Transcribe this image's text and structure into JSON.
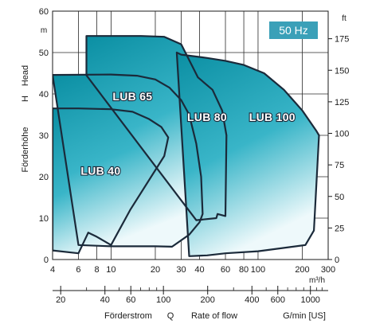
{
  "chart_data": {
    "type": "area",
    "title": "",
    "badge": {
      "text": "50 Hz",
      "color": "#3aa0b8"
    },
    "y_left": {
      "range": [
        0,
        60
      ],
      "ticks": [
        0,
        10,
        20,
        30,
        40,
        50,
        60
      ],
      "tick_labels": [
        "0",
        "10",
        "20",
        "30",
        "40",
        "50",
        "60"
      ],
      "unit": "m",
      "titles": [
        "Head",
        "H",
        "Förderhöhe"
      ]
    },
    "y_right": {
      "range_ft": [
        0,
        196.85
      ],
      "ticks": [
        0,
        25,
        50,
        75,
        100,
        125,
        150,
        175
      ],
      "tick_labels": [
        "0",
        "25",
        "50",
        "75",
        "100",
        "125",
        "150",
        "175"
      ],
      "unit": "ft"
    },
    "x_m3h": {
      "scale": "log",
      "range": [
        4,
        300
      ],
      "ticks": [
        4,
        6,
        8,
        10,
        20,
        30,
        40,
        60,
        80,
        100,
        200,
        300
      ],
      "tick_labels": [
        "4",
        "6",
        "8",
        "10",
        "20",
        "30",
        "40",
        "60",
        "80",
        "100",
        "200",
        "300"
      ],
      "unit": "m³/h"
    },
    "x_usgpm": {
      "scale": "log",
      "ticks": [
        20,
        40,
        60,
        100,
        200,
        400,
        600,
        1000
      ],
      "tick_labels": [
        "20",
        "40",
        "60",
        "100",
        "200",
        "400",
        "600",
        "1000"
      ],
      "title_de": "Förderstrom",
      "title_sym": "Q",
      "title_en": "Rate of flow",
      "unit": "G/min [US]"
    },
    "grid": true,
    "colors": {
      "fill_dark": "#0b8fa3",
      "fill_mid": "#39b5c8",
      "fill_light": "#eef9fb",
      "outline": "#1b2a3a"
    },
    "series": [
      {
        "name": "LUB 40",
        "points": [
          [
            4,
            2.2
          ],
          [
            6,
            1.5
          ],
          [
            7,
            6.5
          ],
          [
            8,
            5.5
          ],
          [
            10,
            3.5
          ],
          [
            13.5,
            12
          ],
          [
            23,
            25
          ],
          [
            24.5,
            29.5
          ],
          [
            22,
            32
          ],
          [
            18,
            34
          ],
          [
            14,
            35.7
          ],
          [
            10,
            36.3
          ],
          [
            6,
            36.5
          ],
          [
            4,
            36.5
          ]
        ]
      },
      {
        "name": "LUB 65",
        "points": [
          [
            6,
            3.5
          ],
          [
            10,
            3.2
          ],
          [
            20,
            3.2
          ],
          [
            26,
            3.1
          ],
          [
            34,
            6
          ],
          [
            40,
            9
          ],
          [
            42,
            11
          ],
          [
            41,
            20
          ],
          [
            38,
            28
          ],
          [
            34,
            35
          ],
          [
            30,
            38.5
          ],
          [
            25,
            41.5
          ],
          [
            20,
            43.5
          ],
          [
            15,
            44.4
          ],
          [
            10,
            44.7
          ],
          [
            4,
            44.6
          ]
        ]
      },
      {
        "name": "LUB 80",
        "points": [
          [
            38,
            9.5
          ],
          [
            52,
            10
          ],
          [
            53,
            11
          ],
          [
            60,
            10.5
          ],
          [
            61,
            30
          ],
          [
            57,
            36
          ],
          [
            49,
            41
          ],
          [
            39,
            44
          ],
          [
            30,
            52
          ],
          [
            23,
            53.8
          ],
          [
            16,
            54
          ],
          [
            6.8,
            54
          ],
          [
            6.8,
            44.5
          ]
        ]
      },
      {
        "name": "LUB 100",
        "points": [
          [
            34,
            0.8
          ],
          [
            45,
            1
          ],
          [
            60,
            1.5
          ],
          [
            100,
            2
          ],
          [
            150,
            2.8
          ],
          [
            210,
            3.5
          ],
          [
            240,
            7
          ],
          [
            260,
            30
          ],
          [
            250,
            31
          ],
          [
            200,
            36
          ],
          [
            150,
            41
          ],
          [
            110,
            45
          ],
          [
            80,
            47
          ],
          [
            60,
            48
          ],
          [
            45,
            48.7
          ],
          [
            30,
            49.5
          ],
          [
            28,
            50
          ]
        ]
      }
    ],
    "labels": [
      {
        "text": "LUB 40",
        "at": [
          8.5,
          20.5
        ]
      },
      {
        "text": "LUB 65",
        "at": [
          14,
          38.5
        ]
      },
      {
        "text": "LUB 80",
        "at": [
          45,
          33.5
        ]
      },
      {
        "text": "LUB 100",
        "at": [
          125,
          33.5
        ]
      }
    ]
  }
}
